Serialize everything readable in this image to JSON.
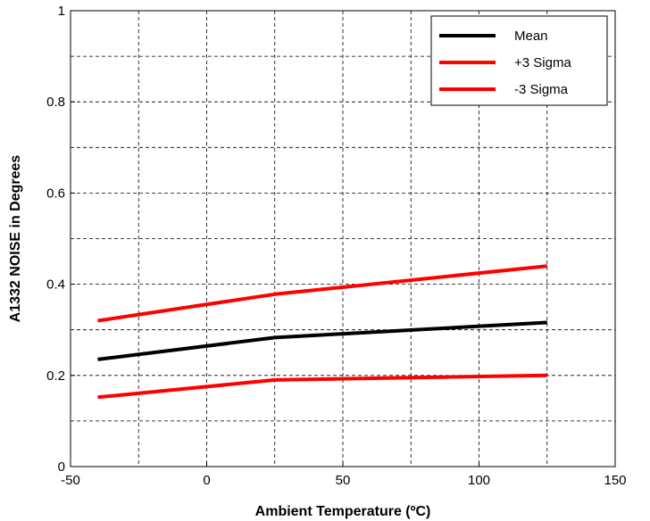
{
  "chart_data": {
    "type": "line",
    "title": "",
    "xlabel": "Ambient Temperature (ºC)",
    "ylabel": "A1332 NOISE in Degrees",
    "xlim": [
      -50,
      150
    ],
    "ylim": [
      0,
      1
    ],
    "x_ticks": [
      -50,
      0,
      50,
      100,
      150
    ],
    "x_tick_labels": [
      "-50",
      "0",
      "50",
      "100",
      "150"
    ],
    "y_ticks": [
      0,
      0.2,
      0.4,
      0.6,
      0.8,
      1
    ],
    "y_tick_labels": [
      "0",
      "0.2",
      "0.4",
      "0.6",
      "0.8",
      "1"
    ],
    "x_grid": [
      -25,
      0,
      25,
      50,
      75,
      100,
      125
    ],
    "y_grid": [
      0.1,
      0.2,
      0.3,
      0.4,
      0.5,
      0.6,
      0.7,
      0.8,
      0.9
    ],
    "grid": true,
    "legend_position": "top-right",
    "x": [
      -40,
      25,
      125
    ],
    "series": [
      {
        "name": "Mean",
        "color": "#000000",
        "values": [
          0.235,
          0.283,
          0.316
        ]
      },
      {
        "name": "+3 Sigma",
        "color": "#ff0000",
        "values": [
          0.32,
          0.378,
          0.44
        ]
      },
      {
        "name": "-3 Sigma",
        "color": "#ff0000",
        "values": [
          0.152,
          0.19,
          0.2
        ]
      }
    ]
  }
}
